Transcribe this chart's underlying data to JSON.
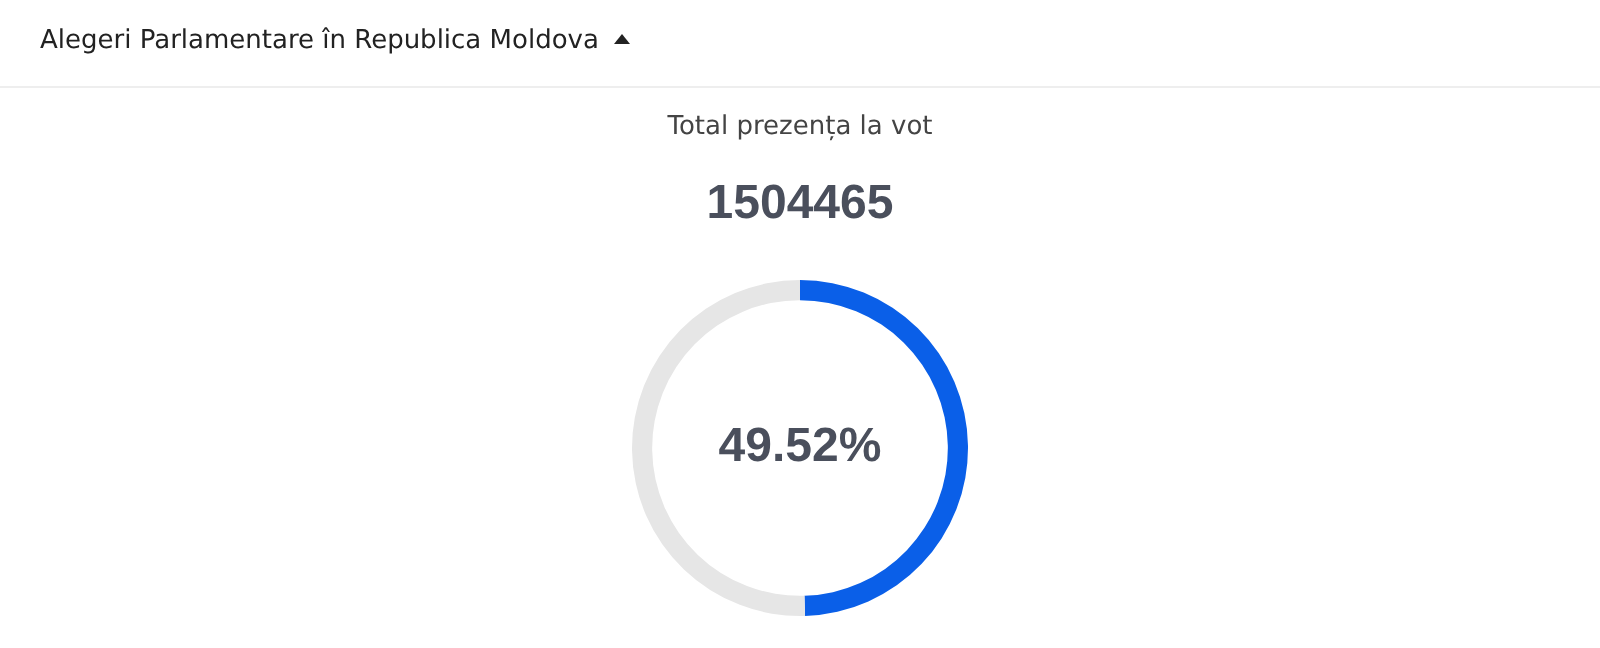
{
  "chart_data": {
    "type": "donut",
    "title": "Alegeri Parlamentare în Republica Moldova",
    "subtitle": "Total prezența la vot",
    "annotations": [
      "1504465",
      "49.52%"
    ],
    "categories": [
      null,
      null
    ],
    "values": [
      49.52,
      50.48
    ],
    "colors": [
      "#0a5fe8",
      "#e6e6e6"
    ],
    "legend": false
  }
}
